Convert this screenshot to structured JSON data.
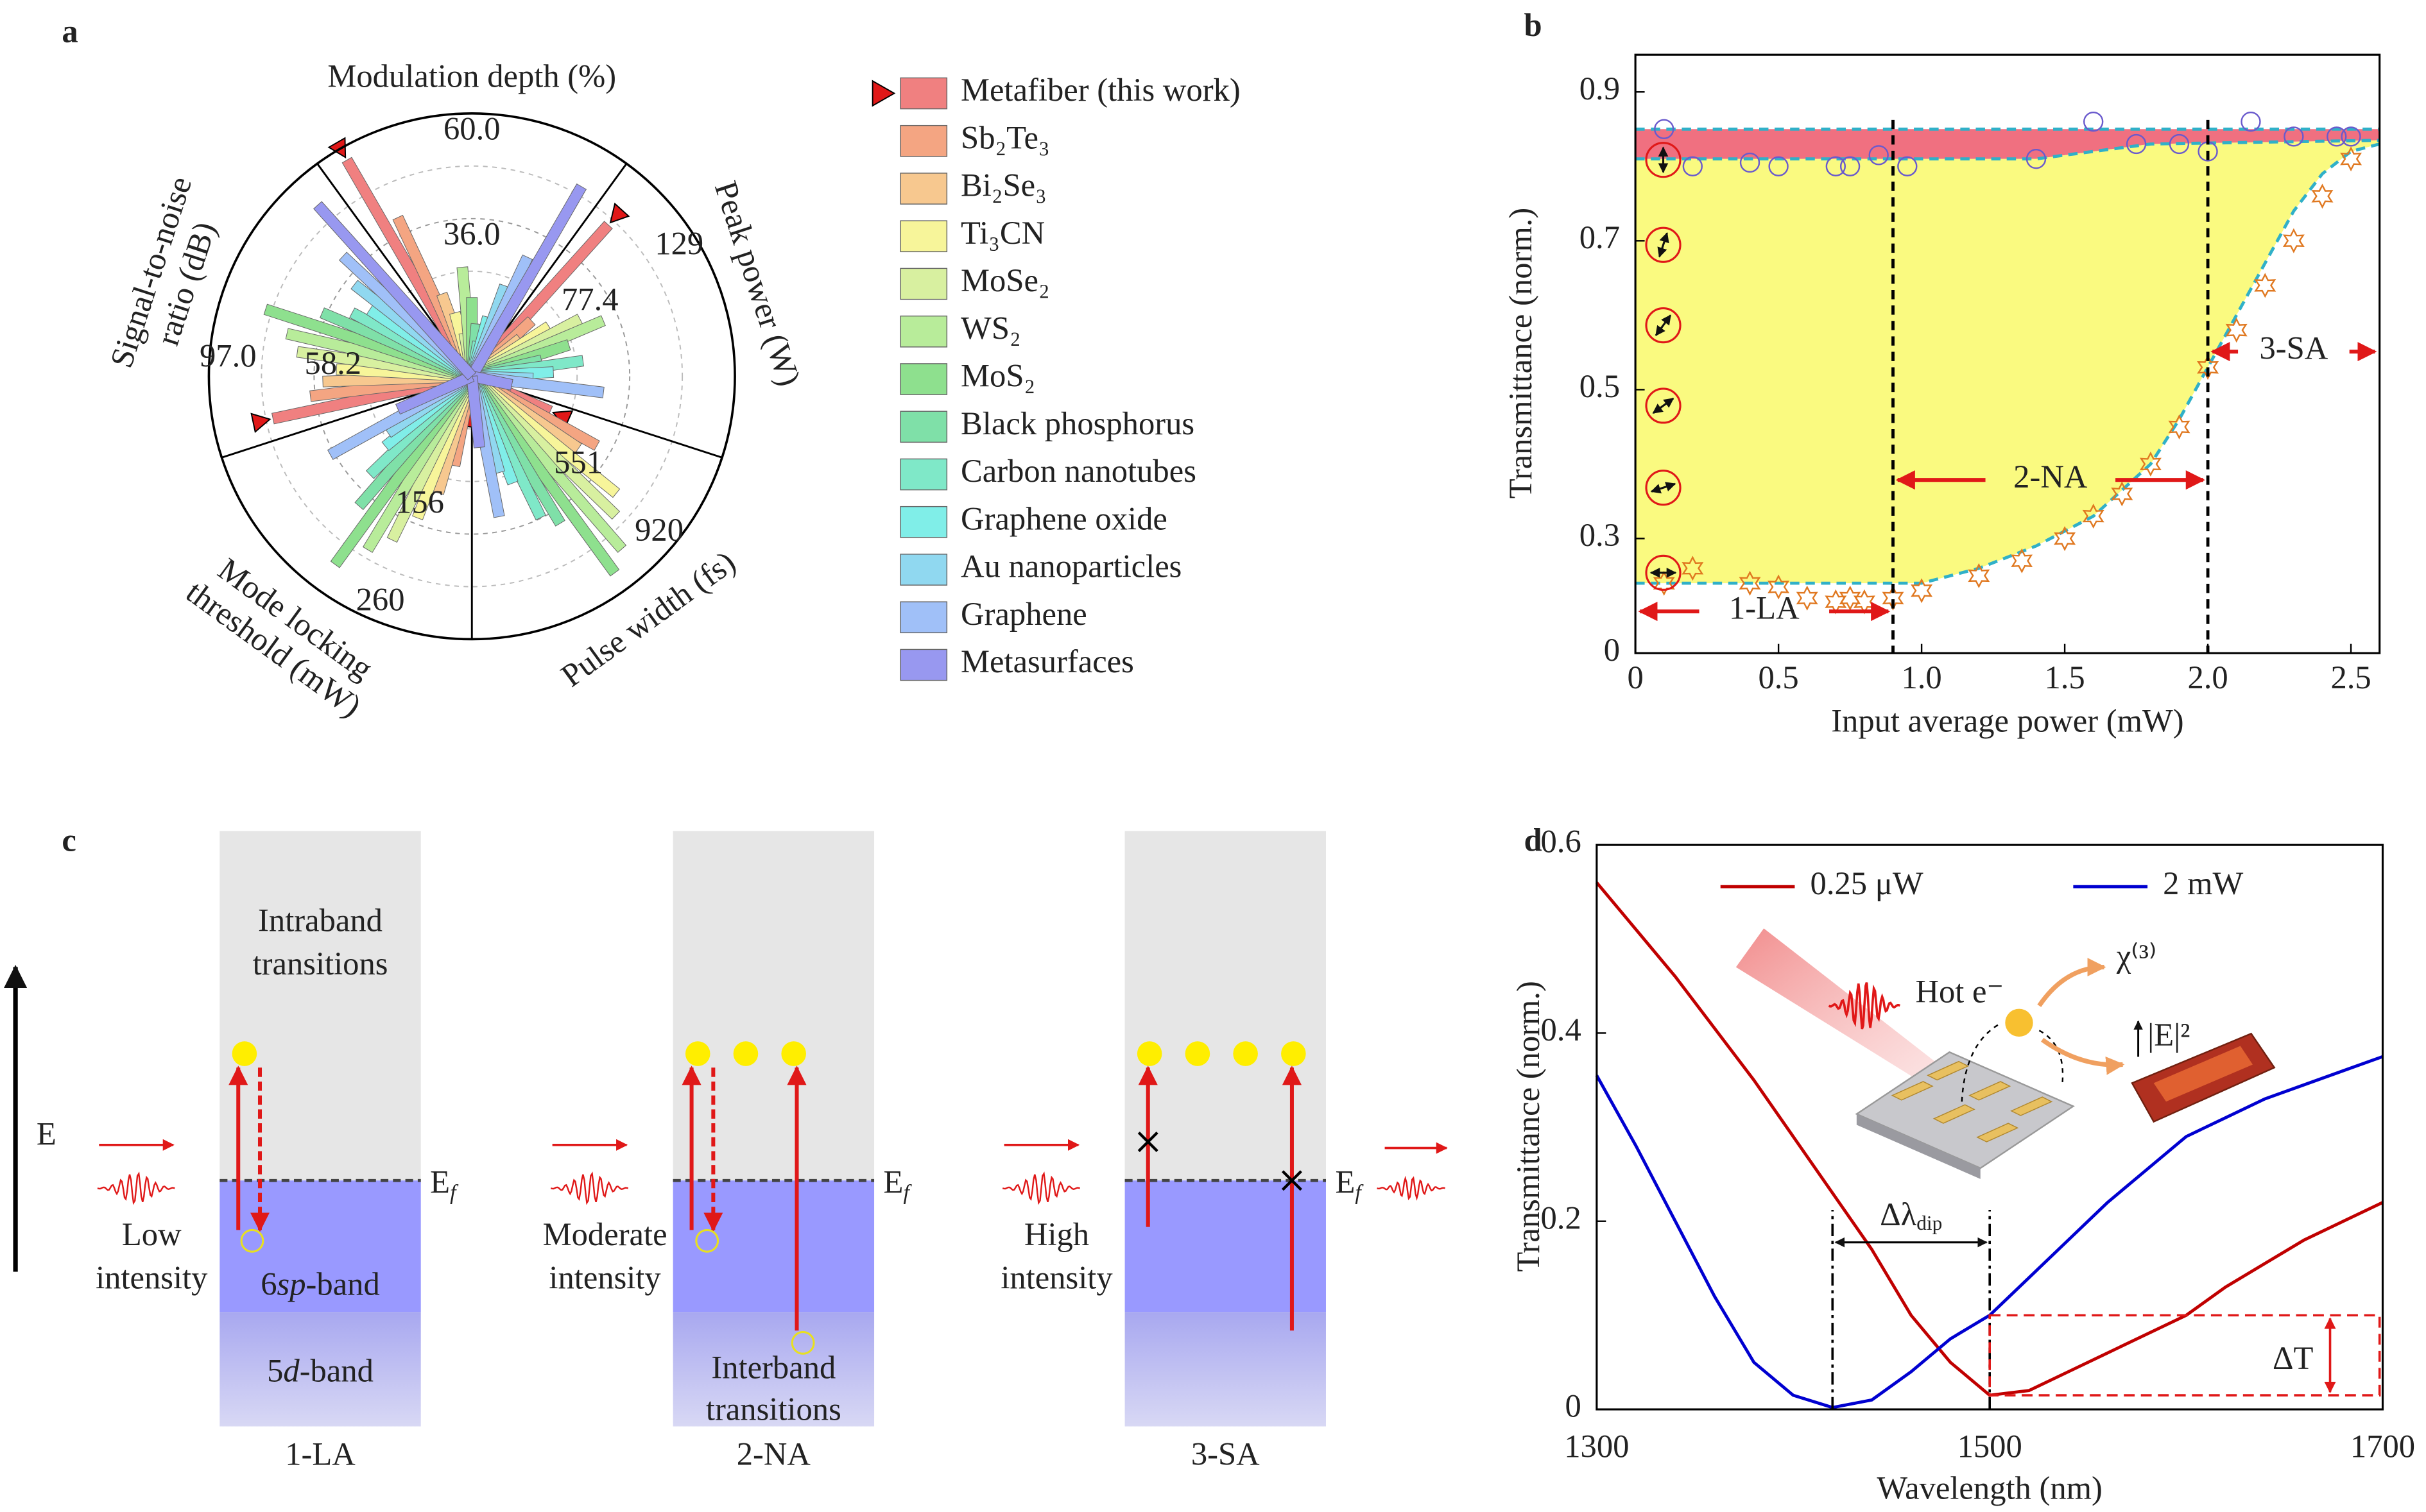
{
  "panel_labels": {
    "a": "a",
    "b": "b",
    "c": "c",
    "d": "d"
  },
  "chart_data": [
    {
      "type": "polar_bar",
      "marker_color": "#e01818",
      "axes": [
        {
          "lines": [
            "Modulation depth (%)"
          ],
          "rlim": [
            0,
            60
          ],
          "ticks": [
            {
              "value": 60,
              "label": "60.0"
            },
            {
              "value": 36,
              "label": "36.0"
            }
          ]
        },
        {
          "lines": [
            "Peak power (W)"
          ],
          "rlim": [
            0,
            129
          ],
          "ticks": [
            129,
            77.4
          ]
        },
        {
          "lines": [
            "Pulse width (fs)"
          ],
          "rlim": [
            0,
            920
          ],
          "ticks": [
            920,
            551
          ]
        },
        {
          "lines": [
            "Mode locking",
            "threshold (mW)"
          ],
          "rlim": [
            0,
            260
          ],
          "ticks": [
            260,
            156
          ]
        },
        {
          "lines": [
            "Signal-to-noise",
            "ratio (dB)"
          ],
          "rlim": [
            0,
            97
          ],
          "ticks": [
            {
              "value": 97,
              "label": "97.0"
            },
            58.2
          ]
        }
      ],
      "series": [
        {
          "name": "Metafiber (this work)",
          "color": "#f08080",
          "values": [
            57,
            100,
            300,
            30,
            75
          ]
        },
        {
          "name": "Sb₂Te₃",
          "color": "#f4a582",
          "values": [
            40,
            40,
            500,
            90,
            60
          ]
        },
        {
          "name": "Bi₂Se₃",
          "color": "#f7c88f",
          "values": [
            20,
            30,
            450,
            120,
            55
          ]
        },
        {
          "name": "Ti₃CN",
          "color": "#f7f59a",
          "values": [
            15,
            45,
            650,
            150,
            50
          ]
        },
        {
          "name": "MoSe₂",
          "color": "#d8f0a0",
          "values": [
            10,
            60,
            700,
            180,
            65
          ]
        },
        {
          "name": "WS₂",
          "color": "#b8ec9a",
          "values": [
            25,
            70,
            800,
            200,
            70
          ]
        },
        {
          "name": "MoS₂",
          "color": "#8ee08e",
          "values": [
            18,
            50,
            850,
            230,
            80
          ]
        },
        {
          "name": "Black phosphorus",
          "color": "#7fe0a8",
          "values": [
            12,
            35,
            600,
            170,
            60
          ]
        },
        {
          "name": "Carbon nanotubes",
          "color": "#7fe8c8",
          "values": [
            8,
            55,
            550,
            140,
            50
          ]
        },
        {
          "name": "Graphene oxide",
          "color": "#80eee8",
          "values": [
            14,
            40,
            400,
            110,
            45
          ]
        },
        {
          "name": "Au nanoparticles",
          "color": "#90d8f0",
          "values": [
            22,
            30,
            350,
            100,
            55
          ]
        },
        {
          "name": "Graphene",
          "color": "#a0c0f8",
          "values": [
            30,
            65,
            500,
            160,
            65
          ]
        },
        {
          "name": "Metasurfaces",
          "color": "#9898f0",
          "values": [
            50,
            20,
            250,
            80,
            85
          ]
        }
      ]
    },
    {
      "type": "scatter",
      "xlabel": "Input average power (mW)",
      "ylabel": "Transmittance (norm.)",
      "xlim": [
        0,
        2.6
      ],
      "ylim": [
        0.146,
        0.95
      ],
      "xticks": [
        0,
        0.5,
        {
          "value": 1,
          "label": "1.0"
        },
        1.5,
        {
          "value": 2,
          "label": "2.0"
        },
        2.5
      ],
      "yticks": [
        {
          "value": 0.146,
          "label": "0"
        },
        0.3,
        0.5,
        0.7,
        0.9
      ],
      "saturation_level": 0.85,
      "fill_colors": [
        "#f07080",
        "#fafa80"
      ],
      "series": [
        {
          "marker": "circle",
          "color": "#6a5acd",
          "x": [
            0.1,
            0.2,
            0.4,
            0.5,
            0.7,
            0.75,
            0.85,
            0.95,
            1.4,
            1.6,
            1.75,
            1.9,
            2.0,
            2.15,
            2.3,
            2.45,
            2.5
          ],
          "values": [
            0.85,
            0.8,
            0.805,
            0.8,
            0.8,
            0.8,
            0.815,
            0.8,
            0.81,
            0.86,
            0.83,
            0.83,
            0.82,
            0.86,
            0.84,
            0.84,
            0.84
          ]
        },
        {
          "marker": "star",
          "color": "#e07820",
          "x": [
            0.1,
            0.2,
            0.4,
            0.5,
            0.6,
            0.7,
            0.75,
            0.8,
            0.9,
            1.0,
            1.2,
            1.35,
            1.5,
            1.6,
            1.7,
            1.8,
            1.9,
            2.0,
            2.1,
            2.2,
            2.3,
            2.4,
            2.5
          ],
          "values": [
            0.24,
            0.26,
            0.24,
            0.235,
            0.22,
            0.215,
            0.22,
            0.215,
            0.22,
            0.23,
            0.25,
            0.27,
            0.3,
            0.33,
            0.36,
            0.4,
            0.45,
            0.53,
            0.58,
            0.64,
            0.7,
            0.76,
            0.81
          ]
        }
      ],
      "fits": [
        {
          "color": "#30b0c8",
          "x": [
            0,
            1.0,
            1.4,
            1.6,
            1.8,
            2.6
          ],
          "values": [
            0.81,
            0.81,
            0.81,
            0.82,
            0.83,
            0.835
          ]
        },
        {
          "color": "#30b0c8",
          "x": [
            0,
            0.5,
            1.0,
            1.2,
            1.4,
            1.6,
            1.8,
            1.9,
            2.0,
            2.1,
            2.2,
            2.3,
            2.4,
            2.5,
            2.6
          ],
          "values": [
            0.24,
            0.24,
            0.24,
            0.26,
            0.29,
            0.33,
            0.4,
            0.46,
            0.53,
            0.6,
            0.67,
            0.74,
            0.79,
            0.82,
            0.83
          ]
        }
      ],
      "regions": [
        {
          "label": "1-LA",
          "from": 0,
          "to": 0.9
        },
        {
          "label": "2-NA",
          "from": 0.9,
          "to": 2.0
        },
        {
          "label": "3-SA",
          "from": 2.0,
          "to": 2.6
        }
      ]
    },
    {
      "type": "line",
      "xlabel": "Wavelength (nm)",
      "ylabel": "Transmittance (norm.)",
      "xlim": [
        1300,
        1700
      ],
      "ylim": [
        0,
        0.6
      ],
      "xticks": [
        1300,
        1500,
        1700
      ],
      "yticks": [
        0,
        0.2,
        0.4,
        0.6
      ],
      "x": [
        1300,
        1320,
        1340,
        1360,
        1380,
        1400,
        1420,
        1440,
        1460,
        1480,
        1500,
        1520,
        1540,
        1560,
        1580,
        1600,
        1620,
        1640,
        1660,
        1680,
        1700
      ],
      "series": [
        {
          "name": "0.25 μW",
          "color": "#c00000",
          "values": [
            0.56,
            0.51,
            0.46,
            0.405,
            0.35,
            0.29,
            0.23,
            0.17,
            0.1,
            0.05,
            0.015,
            0.02,
            0.04,
            0.06,
            0.08,
            0.1,
            0.13,
            0.155,
            0.18,
            0.2,
            0.22
          ]
        },
        {
          "name": "2 mW",
          "color": "#0000d0",
          "values": [
            0.355,
            0.28,
            0.2,
            0.12,
            0.05,
            0.015,
            0.002,
            0.01,
            0.04,
            0.075,
            0.1,
            0.14,
            0.18,
            0.22,
            0.255,
            0.29,
            0.31,
            0.33,
            0.345,
            0.36,
            0.375
          ]
        }
      ],
      "delta_lambda": {
        "from": 1420,
        "to": 1500,
        "label": "Δλ",
        "sub": "dip"
      },
      "delta_t": {
        "x": [
          1500,
          1700
        ],
        "y": [
          0.015,
          0.1
        ],
        "label": "ΔT"
      },
      "inset": {
        "hot_electron": "Hot e⁻",
        "chi": "χ⁽³⁾",
        "field": "|E|²"
      }
    }
  ],
  "diagram": {
    "energy_label": "E",
    "fermi_label": "E",
    "fermi_sub": "f",
    "intraband_lines": [
      "Intraband",
      "transitions"
    ],
    "interband_lines": [
      "Interband",
      "transitions"
    ],
    "sp_band": [
      "6",
      "sp",
      "-band"
    ],
    "d_band": [
      "5",
      "d",
      "-band"
    ],
    "columns": [
      {
        "stage": "1-LA",
        "intensity_lines": [
          "Low",
          "intensity"
        ]
      },
      {
        "stage": "2-NA",
        "intensity_lines": [
          "Moderate",
          "intensity"
        ]
      },
      {
        "stage": "3-SA",
        "intensity_lines": [
          "High",
          "intensity"
        ]
      }
    ]
  }
}
